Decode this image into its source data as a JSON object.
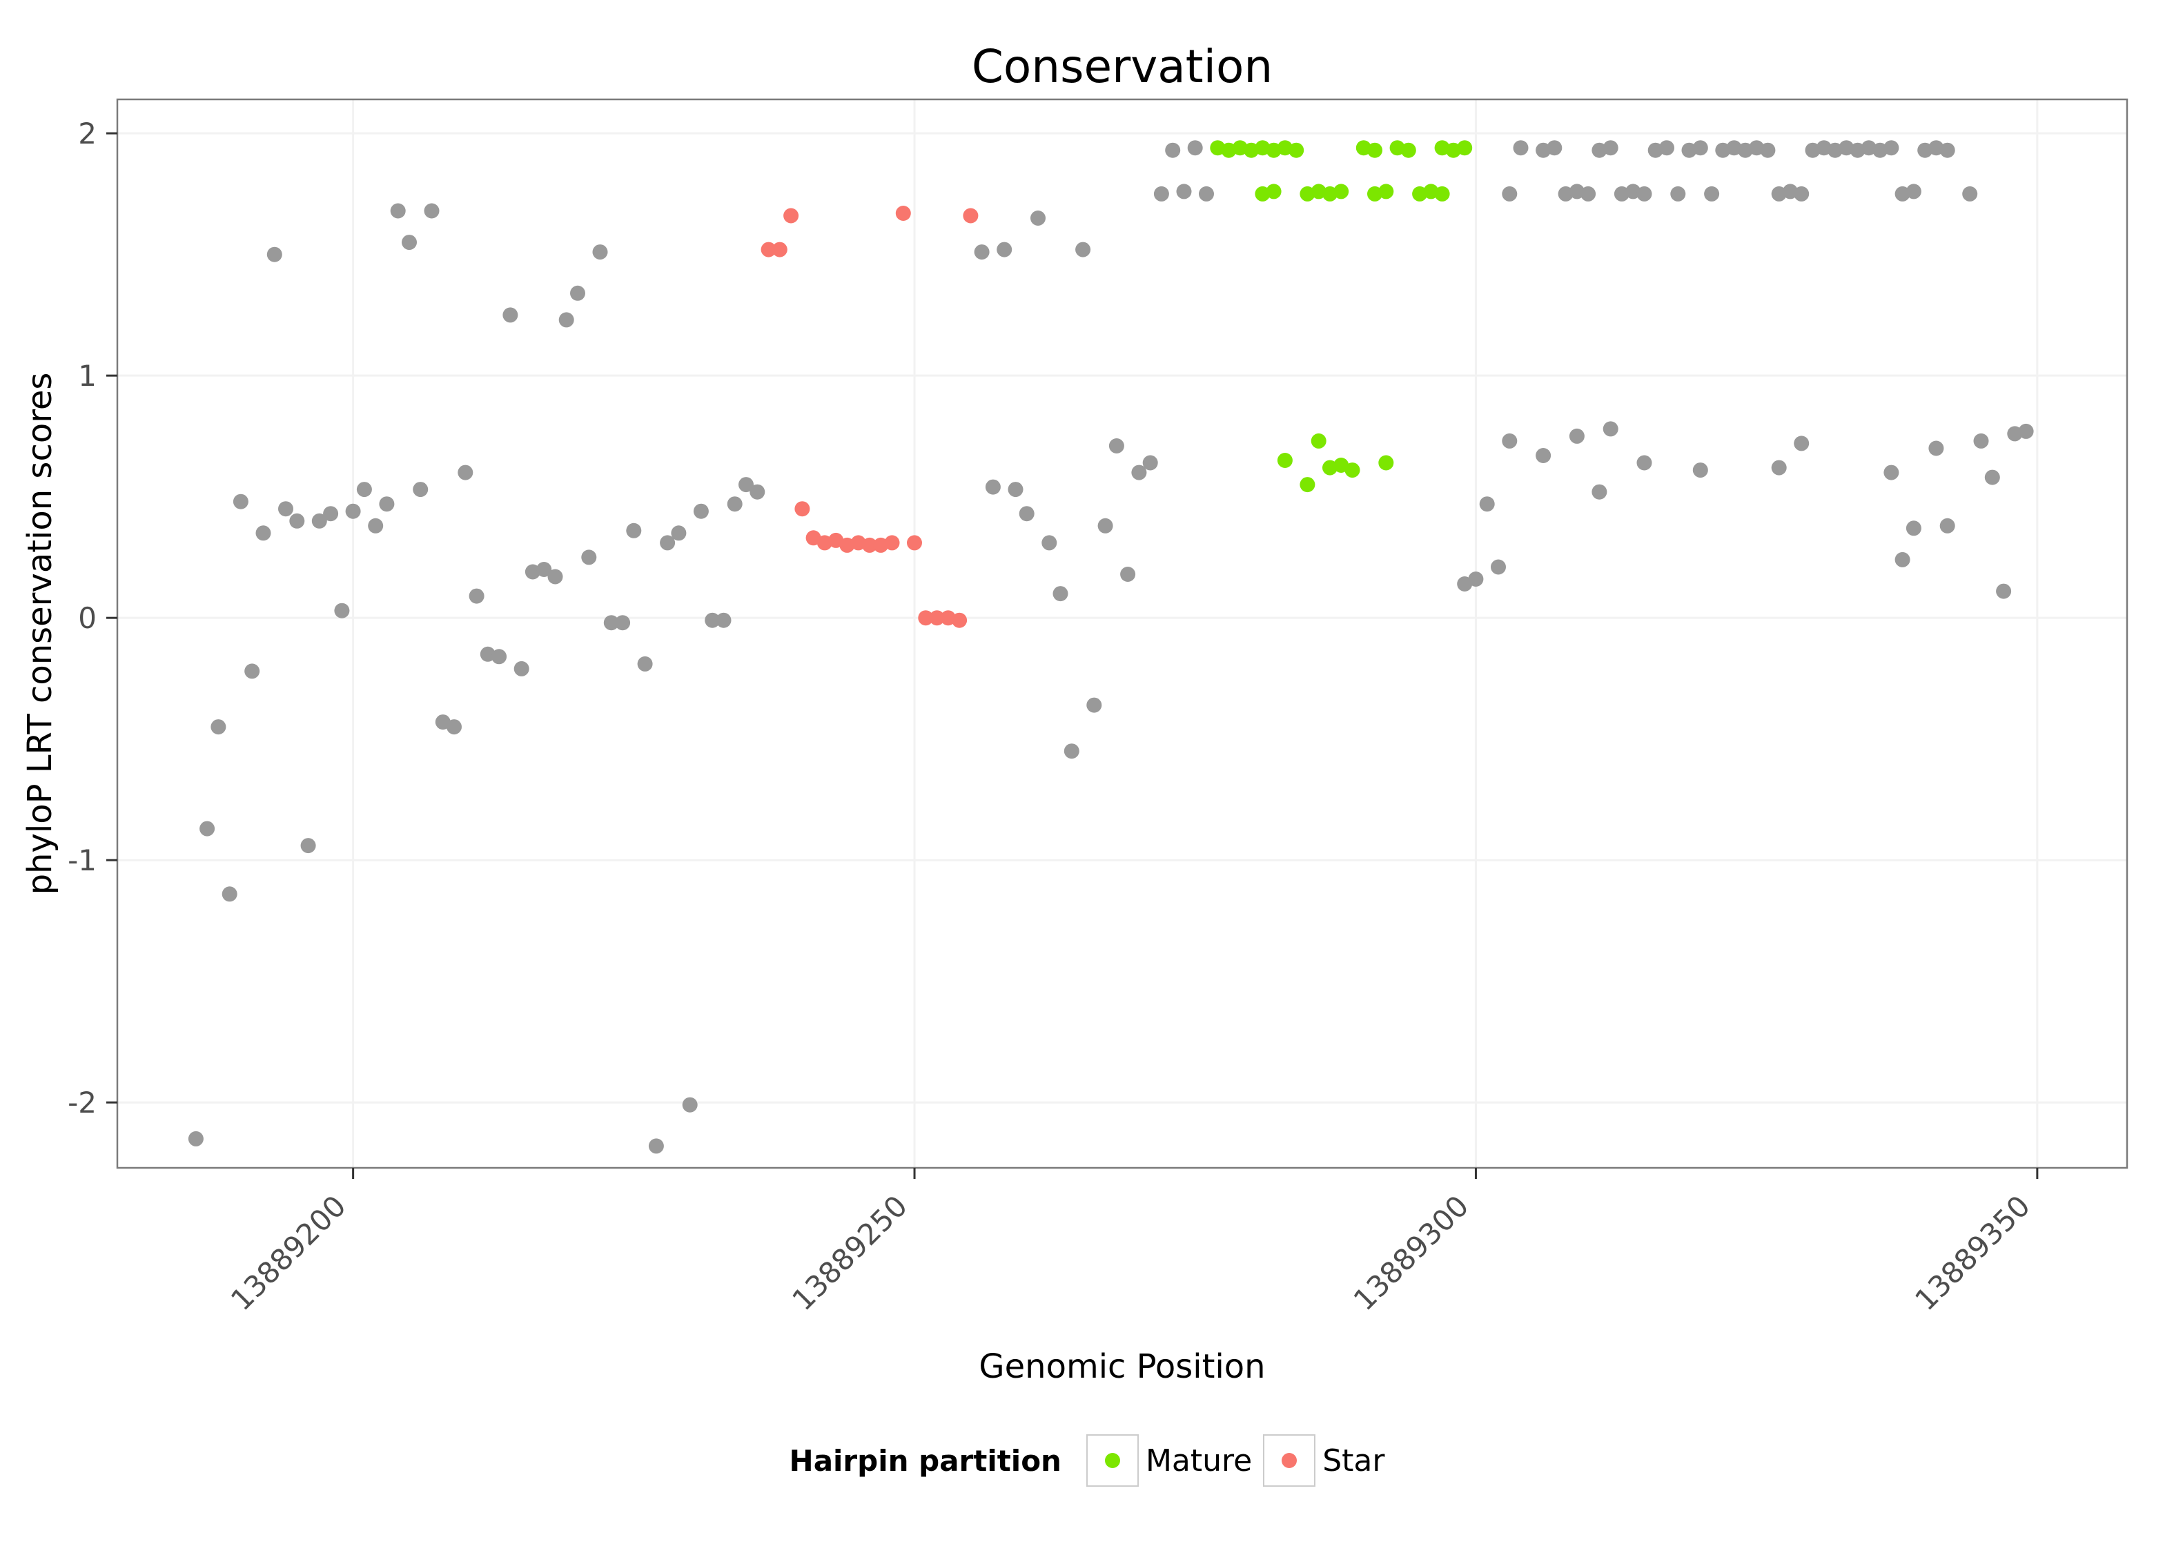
{
  "chart_data": {
    "type": "scatter",
    "title": "Conservation",
    "xlabel": "Genomic Position",
    "ylabel": "phyloP LRT conservation scores",
    "x_ticks": [
      13889200,
      13889250,
      13889300,
      13889350
    ],
    "y_ticks": [
      -2,
      -1,
      0,
      1,
      2
    ],
    "xlim": [
      13889179,
      13889358
    ],
    "ylim": [
      -2.27,
      2.14
    ],
    "grid": "major-faint",
    "grid_color": "#f2f2f2",
    "panel_border_color": "#7a7a7a",
    "legend": {
      "title": "Hairpin partition",
      "position": "bottom",
      "entries": [
        {
          "label": "Mature",
          "color": "#7CE600"
        },
        {
          "label": "Star",
          "color": "#F8766D"
        }
      ]
    },
    "series": [
      {
        "name": "Other",
        "color": "#999999",
        "points": [
          [
            13889186,
            -2.15
          ],
          [
            13889187,
            -0.87
          ],
          [
            13889188,
            -0.45
          ],
          [
            13889189,
            -1.14
          ],
          [
            13889190,
            0.48
          ],
          [
            13889191,
            -0.22
          ],
          [
            13889192,
            0.35
          ],
          [
            13889193,
            1.5
          ],
          [
            13889194,
            0.45
          ],
          [
            13889195,
            0.4
          ],
          [
            13889196,
            -0.94
          ],
          [
            13889197,
            0.4
          ],
          [
            13889198,
            0.43
          ],
          [
            13889199,
            0.03
          ],
          [
            13889200,
            0.44
          ],
          [
            13889201,
            0.53
          ],
          [
            13889202,
            0.38
          ],
          [
            13889203,
            0.47
          ],
          [
            13889204,
            1.68
          ],
          [
            13889205,
            1.55
          ],
          [
            13889206,
            0.53
          ],
          [
            13889207,
            1.68
          ],
          [
            13889208,
            -0.43
          ],
          [
            13889209,
            -0.45
          ],
          [
            13889210,
            0.6
          ],
          [
            13889211,
            0.09
          ],
          [
            13889212,
            -0.15
          ],
          [
            13889213,
            -0.16
          ],
          [
            13889214,
            1.25
          ],
          [
            13889215,
            -0.21
          ],
          [
            13889216,
            0.19
          ],
          [
            13889217,
            0.2
          ],
          [
            13889218,
            0.17
          ],
          [
            13889219,
            1.23
          ],
          [
            13889220,
            1.34
          ],
          [
            13889221,
            0.25
          ],
          [
            13889222,
            1.51
          ],
          [
            13889223,
            -0.02
          ],
          [
            13889224,
            -0.02
          ],
          [
            13889225,
            0.36
          ],
          [
            13889226,
            -0.19
          ],
          [
            13889227,
            -2.18
          ],
          [
            13889228,
            0.31
          ],
          [
            13889229,
            0.35
          ],
          [
            13889230,
            -2.01
          ],
          [
            13889231,
            0.44
          ],
          [
            13889232,
            -0.01
          ],
          [
            13889233,
            -0.01
          ],
          [
            13889234,
            0.47
          ],
          [
            13889235,
            0.55
          ],
          [
            13889236,
            0.52
          ],
          [
            13889256,
            1.51
          ],
          [
            13889257,
            0.54
          ],
          [
            13889258,
            1.52
          ],
          [
            13889259,
            0.53
          ],
          [
            13889260,
            0.43
          ],
          [
            13889261,
            1.65
          ],
          [
            13889262,
            0.31
          ],
          [
            13889263,
            0.1
          ],
          [
            13889264,
            -0.55
          ],
          [
            13889265,
            1.52
          ],
          [
            13889266,
            -0.36
          ],
          [
            13889267,
            0.38
          ],
          [
            13889268,
            0.71
          ],
          [
            13889269,
            0.18
          ],
          [
            13889270,
            0.6
          ],
          [
            13889271,
            0.64
          ],
          [
            13889272,
            1.75
          ],
          [
            13889273,
            1.93
          ],
          [
            13889274,
            1.76
          ],
          [
            13889275,
            1.94
          ],
          [
            13889276,
            1.75
          ],
          [
            13889303,
            1.75
          ],
          [
            13889304,
            1.94
          ],
          [
            13889306,
            1.93
          ],
          [
            13889307,
            1.94
          ],
          [
            13889308,
            1.75
          ],
          [
            13889309,
            1.76
          ],
          [
            13889310,
            1.75
          ],
          [
            13889311,
            1.93
          ],
          [
            13889312,
            1.94
          ],
          [
            13889313,
            1.75
          ],
          [
            13889314,
            1.76
          ],
          [
            13889315,
            1.75
          ],
          [
            13889316,
            1.93
          ],
          [
            13889317,
            1.94
          ],
          [
            13889318,
            1.75
          ],
          [
            13889319,
            1.93
          ],
          [
            13889320,
            1.94
          ],
          [
            13889321,
            1.75
          ],
          [
            13889322,
            1.93
          ],
          [
            13889323,
            1.94
          ],
          [
            13889324,
            1.93
          ],
          [
            13889325,
            1.94
          ],
          [
            13889326,
            1.93
          ],
          [
            13889327,
            1.75
          ],
          [
            13889328,
            1.76
          ],
          [
            13889329,
            1.75
          ],
          [
            13889330,
            1.93
          ],
          [
            13889331,
            1.94
          ],
          [
            13889332,
            1.93
          ],
          [
            13889333,
            1.94
          ],
          [
            13889334,
            1.93
          ],
          [
            13889335,
            1.94
          ],
          [
            13889336,
            1.93
          ],
          [
            13889337,
            1.94
          ],
          [
            13889338,
            1.75
          ],
          [
            13889339,
            1.76
          ],
          [
            13889340,
            1.93
          ],
          [
            13889341,
            1.94
          ],
          [
            13889342,
            1.93
          ],
          [
            13889344,
            1.75
          ],
          [
            13889299,
            0.14
          ],
          [
            13889300,
            0.16
          ],
          [
            13889301,
            0.47
          ],
          [
            13889302,
            0.21
          ],
          [
            13889303,
            0.73
          ],
          [
            13889306,
            0.67
          ],
          [
            13889309,
            0.75
          ],
          [
            13889311,
            0.52
          ],
          [
            13889312,
            0.78
          ],
          [
            13889315,
            0.64
          ],
          [
            13889320,
            0.61
          ],
          [
            13889327,
            0.62
          ],
          [
            13889329,
            0.72
          ],
          [
            13889337,
            0.6
          ],
          [
            13889338,
            0.24
          ],
          [
            13889339,
            0.37
          ],
          [
            13889341,
            0.7
          ],
          [
            13889342,
            0.38
          ],
          [
            13889345,
            0.73
          ],
          [
            13889346,
            0.58
          ],
          [
            13889347,
            0.11
          ],
          [
            13889348,
            0.76
          ],
          [
            13889349,
            0.77
          ]
        ]
      },
      {
        "name": "Mature",
        "color": "#7CE600",
        "points": [
          [
            13889277,
            1.94
          ],
          [
            13889278,
            1.93
          ],
          [
            13889279,
            1.94
          ],
          [
            13889280,
            1.93
          ],
          [
            13889281,
            1.94
          ],
          [
            13889282,
            1.93
          ],
          [
            13889283,
            1.94
          ],
          [
            13889284,
            1.93
          ],
          [
            13889290,
            1.94
          ],
          [
            13889291,
            1.93
          ],
          [
            13889293,
            1.94
          ],
          [
            13889294,
            1.93
          ],
          [
            13889297,
            1.94
          ],
          [
            13889298,
            1.93
          ],
          [
            13889299,
            1.94
          ],
          [
            13889281,
            1.75
          ],
          [
            13889282,
            1.76
          ],
          [
            13889285,
            1.75
          ],
          [
            13889286,
            1.76
          ],
          [
            13889287,
            1.75
          ],
          [
            13889288,
            1.76
          ],
          [
            13889291,
            1.75
          ],
          [
            13889292,
            1.76
          ],
          [
            13889295,
            1.75
          ],
          [
            13889296,
            1.76
          ],
          [
            13889297,
            1.75
          ],
          [
            13889283,
            0.65
          ],
          [
            13889285,
            0.55
          ],
          [
            13889286,
            0.73
          ],
          [
            13889287,
            0.62
          ],
          [
            13889288,
            0.63
          ],
          [
            13889289,
            0.61
          ],
          [
            13889292,
            0.64
          ]
        ]
      },
      {
        "name": "Star",
        "color": "#F8766D",
        "points": [
          [
            13889237,
            1.52
          ],
          [
            13889238,
            1.52
          ],
          [
            13889239,
            1.66
          ],
          [
            13889240,
            0.45
          ],
          [
            13889241,
            0.33
          ],
          [
            13889242,
            0.31
          ],
          [
            13889243,
            0.32
          ],
          [
            13889244,
            0.3
          ],
          [
            13889245,
            0.31
          ],
          [
            13889246,
            0.3
          ],
          [
            13889247,
            0.3
          ],
          [
            13889248,
            0.31
          ],
          [
            13889249,
            1.67
          ],
          [
            13889250,
            0.31
          ],
          [
            13889251,
            0.0
          ],
          [
            13889252,
            0.0
          ],
          [
            13889253,
            0.0
          ],
          [
            13889254,
            -0.01
          ],
          [
            13889255,
            1.66
          ]
        ]
      }
    ]
  }
}
